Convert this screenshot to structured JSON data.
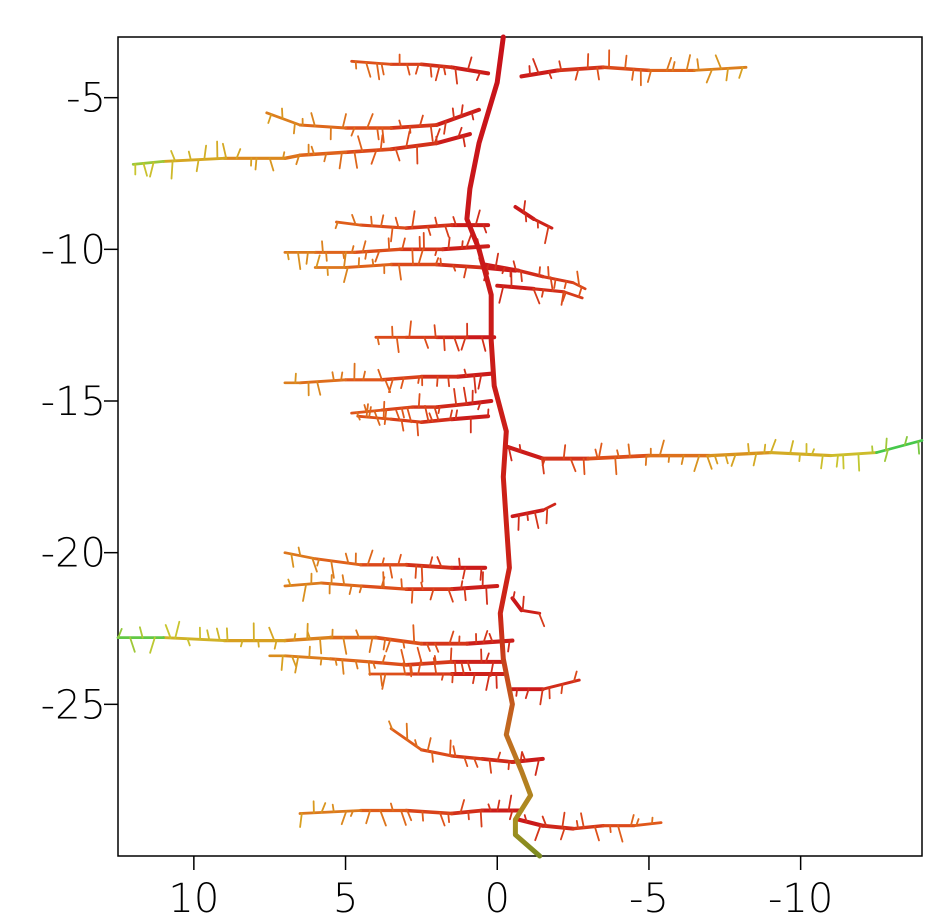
{
  "chart_data": {
    "type": "line",
    "title": "",
    "xlabel": "",
    "ylabel": "",
    "x_reversed": true,
    "xlim": [
      12.5,
      -14
    ],
    "ylim": [
      -30,
      -3
    ],
    "x_ticks": [
      {
        "value": 10,
        "label": "10"
      },
      {
        "value": 5,
        "label": "5"
      },
      {
        "value": 0,
        "label": "0"
      },
      {
        "value": -5,
        "label": "-5"
      },
      {
        "value": -10,
        "label": "-10"
      }
    ],
    "y_ticks": [
      {
        "value": -5,
        "label": "-5"
      },
      {
        "value": -10,
        "label": "-10"
      },
      {
        "value": -15,
        "label": "-15"
      },
      {
        "value": -20,
        "label": "-20"
      },
      {
        "value": -25,
        "label": "-25"
      }
    ],
    "grid": false,
    "color_ramp": [
      "#c8121a",
      "#e0571a",
      "#d8a020",
      "#c8c830",
      "#2fc850"
    ],
    "series": [
      {
        "kind": "trunk",
        "x": [
          -0.2,
          0.0,
          0.6,
          0.9,
          1.0,
          0.6,
          0.2,
          0.2,
          0.1,
          -0.3,
          -0.2,
          -0.3,
          -0.4,
          -0.1,
          -0.2,
          -0.5,
          -0.3,
          -0.8,
          -1.1,
          -0.6,
          -0.6,
          -1.4
        ],
        "y": [
          -3.0,
          -4.5,
          -6.5,
          -8.0,
          -9.0,
          -10.0,
          -11.5,
          -13.0,
          -14.5,
          -16.0,
          -17.5,
          -19.0,
          -20.5,
          -22.0,
          -23.5,
          -25.0,
          -26.0,
          -27.2,
          -28.0,
          -28.8,
          -29.3,
          -30.0
        ]
      },
      {
        "kind": "branch",
        "x": [
          0.3,
          1.5,
          2.5,
          3.5,
          4.8
        ],
        "y": [
          -4.2,
          -4.0,
          -3.9,
          -3.9,
          -3.8
        ]
      },
      {
        "kind": "branch",
        "x": [
          -0.8,
          -2.0,
          -3.5,
          -5.0,
          -6.5,
          -8.2
        ],
        "y": [
          -4.3,
          -4.1,
          -4.0,
          -4.1,
          -4.1,
          -4.0
        ]
      },
      {
        "kind": "branch",
        "x": [
          0.6,
          2.0,
          3.5,
          5.0,
          6.5,
          7.6
        ],
        "y": [
          -5.4,
          -5.9,
          -6.0,
          -6.0,
          -5.9,
          -5.5
        ]
      },
      {
        "kind": "branch",
        "x": [
          0.9,
          2.0,
          3.5,
          5.0,
          6.5,
          7.0,
          9.0,
          11.0,
          12.0
        ],
        "y": [
          -6.2,
          -6.5,
          -6.7,
          -6.8,
          -6.9,
          -7.0,
          -7.0,
          -7.1,
          -7.2
        ]
      },
      {
        "kind": "branch",
        "x": [
          -0.6,
          -1.2,
          -1.8
        ],
        "y": [
          -8.6,
          -9.0,
          -9.3
        ]
      },
      {
        "kind": "branch",
        "x": [
          0.3,
          1.5,
          3.0,
          4.5,
          5.3
        ],
        "y": [
          -9.2,
          -9.2,
          -9.3,
          -9.2,
          -9.1
        ]
      },
      {
        "kind": "branch",
        "x": [
          0.3,
          1.8,
          3.2,
          4.7,
          6.0,
          7.0
        ],
        "y": [
          -9.9,
          -10.0,
          -10.0,
          -10.1,
          -10.1,
          -10.1
        ]
      },
      {
        "kind": "branch",
        "x": [
          -0.6,
          0.5,
          2.0,
          3.5,
          5.0,
          6.0
        ],
        "y": [
          -10.7,
          -10.6,
          -10.5,
          -10.5,
          -10.6,
          -10.6
        ]
      },
      {
        "kind": "branch",
        "x": [
          0.4,
          -0.7,
          -1.5,
          -2.5,
          -2.9
        ],
        "y": [
          -10.5,
          -10.7,
          -10.9,
          -11.1,
          -11.3
        ]
      },
      {
        "kind": "branch",
        "x": [
          0.0,
          -1.2,
          -2.2,
          -2.8
        ],
        "y": [
          -11.2,
          -11.3,
          -11.4,
          -11.6
        ]
      },
      {
        "kind": "branch",
        "x": [
          0.1,
          1.0,
          2.0,
          3.0,
          4.0
        ],
        "y": [
          -12.9,
          -12.9,
          -12.9,
          -12.9,
          -12.9
        ]
      },
      {
        "kind": "branch",
        "x": [
          0.2,
          1.3,
          2.5,
          3.8,
          5.0,
          6.5,
          7.0
        ],
        "y": [
          -14.1,
          -14.2,
          -14.2,
          -14.3,
          -14.3,
          -14.4,
          -14.4
        ]
      },
      {
        "kind": "branch",
        "x": [
          0.2,
          1.0,
          2.0,
          2.8,
          3.8,
          4.8
        ],
        "y": [
          -15.0,
          -15.1,
          -15.2,
          -15.2,
          -15.3,
          -15.4
        ]
      },
      {
        "kind": "branch",
        "x": [
          0.3,
          1.5,
          2.5,
          3.5,
          4.6
        ],
        "y": [
          -15.5,
          -15.6,
          -15.7,
          -15.6,
          -15.5
        ]
      },
      {
        "kind": "branch",
        "x": [
          -0.3,
          -1.5,
          -3.0,
          -5.0,
          -7.0,
          -9.0,
          -11.0,
          -12.5,
          -14.0
        ],
        "y": [
          -16.5,
          -16.9,
          -16.9,
          -16.8,
          -16.8,
          -16.7,
          -16.8,
          -16.7,
          -16.3
        ]
      },
      {
        "kind": "branch",
        "x": [
          -0.5,
          -1.5,
          -1.9
        ],
        "y": [
          -18.8,
          -18.6,
          -18.4
        ]
      },
      {
        "kind": "branch",
        "x": [
          0.4,
          1.5,
          3.0,
          4.5,
          6.0,
          7.0
        ],
        "y": [
          -20.5,
          -20.5,
          -20.4,
          -20.4,
          -20.2,
          -20.0
        ]
      },
      {
        "kind": "branch",
        "x": [
          0.0,
          1.5,
          3.0,
          4.5,
          5.8,
          7.0
        ],
        "y": [
          -21.1,
          -21.2,
          -21.2,
          -21.1,
          -21.0,
          -21.1
        ]
      },
      {
        "kind": "branch",
        "x": [
          -0.5,
          -0.8,
          -1.4
        ],
        "y": [
          -21.5,
          -21.9,
          -22.0
        ]
      },
      {
        "kind": "branch",
        "x": [
          -0.5,
          1.0,
          2.5,
          4.0,
          5.5,
          7.0,
          9.0,
          11.0,
          12.5
        ],
        "y": [
          -22.9,
          -23.0,
          -23.0,
          -22.8,
          -22.8,
          -22.9,
          -22.9,
          -22.8,
          -22.8
        ]
      },
      {
        "kind": "branch",
        "x": [
          -0.2,
          1.5,
          3.0,
          4.2,
          5.5,
          7.0,
          7.5
        ],
        "y": [
          -23.6,
          -23.6,
          -23.7,
          -23.6,
          -23.5,
          -23.4,
          -23.4
        ]
      },
      {
        "kind": "branch",
        "x": [
          -0.2,
          1.5,
          3.0,
          4.2
        ],
        "y": [
          -24.0,
          -24.0,
          -24.0,
          -24.0
        ]
      },
      {
        "kind": "branch",
        "x": [
          -0.5,
          -1.5,
          -2.7
        ],
        "y": [
          -24.5,
          -24.5,
          -24.2
        ]
      },
      {
        "kind": "branch",
        "x": [
          -1.5,
          -0.5,
          0.5,
          1.5,
          2.5,
          3.5
        ],
        "y": [
          -26.8,
          -26.9,
          -26.8,
          -26.7,
          -26.5,
          -25.8
        ]
      },
      {
        "kind": "branch",
        "x": [
          -0.8,
          0.5,
          1.5,
          3.0,
          4.5,
          6.5
        ],
        "y": [
          -28.5,
          -28.5,
          -28.6,
          -28.5,
          -28.5,
          -28.6
        ]
      },
      {
        "kind": "branch",
        "x": [
          -0.7,
          -1.5,
          -2.5,
          -3.5,
          -4.5,
          -5.4
        ],
        "y": [
          -28.8,
          -29.0,
          -29.1,
          -29.0,
          -29.0,
          -28.9
        ]
      }
    ]
  }
}
